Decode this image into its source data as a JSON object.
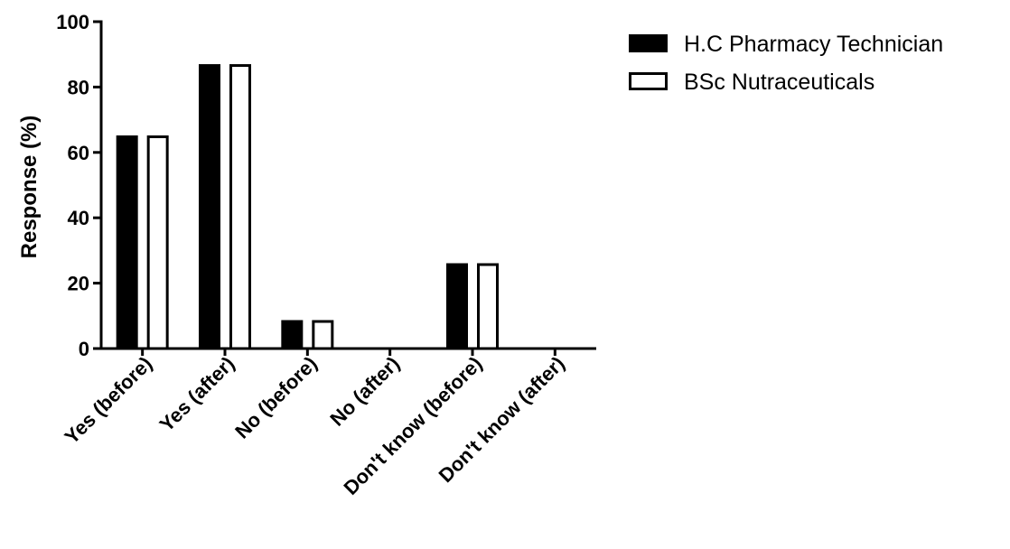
{
  "chart_data": {
    "type": "bar",
    "title": "",
    "xlabel": "",
    "ylabel": "Response (%)",
    "ylim": [
      0,
      100
    ],
    "yticks": [
      0,
      20,
      40,
      60,
      80,
      100
    ],
    "grid": false,
    "legend_position": "top-right",
    "categories": [
      "Yes (before)",
      "Yes (after)",
      "No (before)",
      "No (after)",
      "Don't know (before)",
      "Don't know (after)"
    ],
    "series": [
      {
        "name": "H.C Pharmacy Technician",
        "fill": "#000000",
        "values": [
          65.2,
          87.0,
          8.7,
          0,
          26.1,
          0
        ]
      },
      {
        "name": "BSc Nutraceuticals",
        "fill": "#ffffff",
        "values": [
          65.2,
          87.0,
          8.7,
          0,
          26.1,
          0
        ]
      }
    ]
  }
}
